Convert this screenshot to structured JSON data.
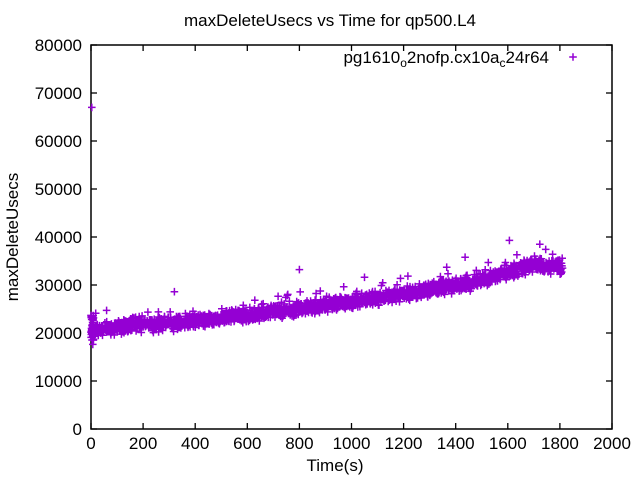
{
  "page": {
    "background": "#ffffff"
  },
  "chart_data": {
    "type": "scatter",
    "title": "maxDeleteUsecs vs Time for qp500.L4",
    "xlabel": "Time(s)",
    "ylabel": "maxDeleteUsecs",
    "xlim": [
      0,
      2000
    ],
    "ylim": [
      0,
      80000
    ],
    "xticks": [
      0,
      200,
      400,
      600,
      800,
      1000,
      1200,
      1400,
      1600,
      1800,
      2000
    ],
    "yticks": [
      0,
      10000,
      20000,
      30000,
      40000,
      50000,
      60000,
      70000,
      80000
    ],
    "grid": false,
    "border": true,
    "tick_style": "inward-mirrored",
    "axis_color": "#000000",
    "text_color": "#000000",
    "legend": {
      "position": "top-right-inside",
      "marker": "plus",
      "label_plain": "pg1610_o2nofp.cx10a_c24r64",
      "label_parts": [
        {
          "t": "pg1610"
        },
        {
          "t": "o",
          "sub": true
        },
        {
          "t": "2nofp.cx10a"
        },
        {
          "t": "c",
          "sub": true
        },
        {
          "t": "24r64"
        }
      ]
    },
    "series": [
      {
        "name": "pg1610_o2nofp.cx10a_c24r64",
        "color": "#9400D3",
        "marker": "plus",
        "point_count": 1800,
        "x_range": [
          0,
          1810
        ],
        "trend_points": [
          [
            0,
            20600
          ],
          [
            300,
            22150
          ],
          [
            610,
            23800
          ],
          [
            1000,
            26500
          ],
          [
            1415,
            30000
          ],
          [
            1700,
            34200
          ],
          [
            1810,
            33600
          ]
        ],
        "noise_sigma": 700,
        "upper_tail": {
          "probability": 0.05,
          "min": 400,
          "max": 2800
        },
        "start_cluster": {
          "x_range": [
            0,
            10
          ],
          "y_range": [
            17200,
            24400
          ],
          "count": 26
        },
        "outliers": [
          [
            3,
            67000
          ],
          [
            18,
            24100
          ],
          [
            60,
            24700
          ],
          [
            320,
            28600
          ],
          [
            800,
            33200
          ],
          [
            1050,
            31600
          ],
          [
            1436,
            35800
          ],
          [
            1606,
            39300
          ],
          [
            1723,
            38500
          ],
          [
            1772,
            36400
          ]
        ],
        "seed": 1337
      }
    ]
  }
}
